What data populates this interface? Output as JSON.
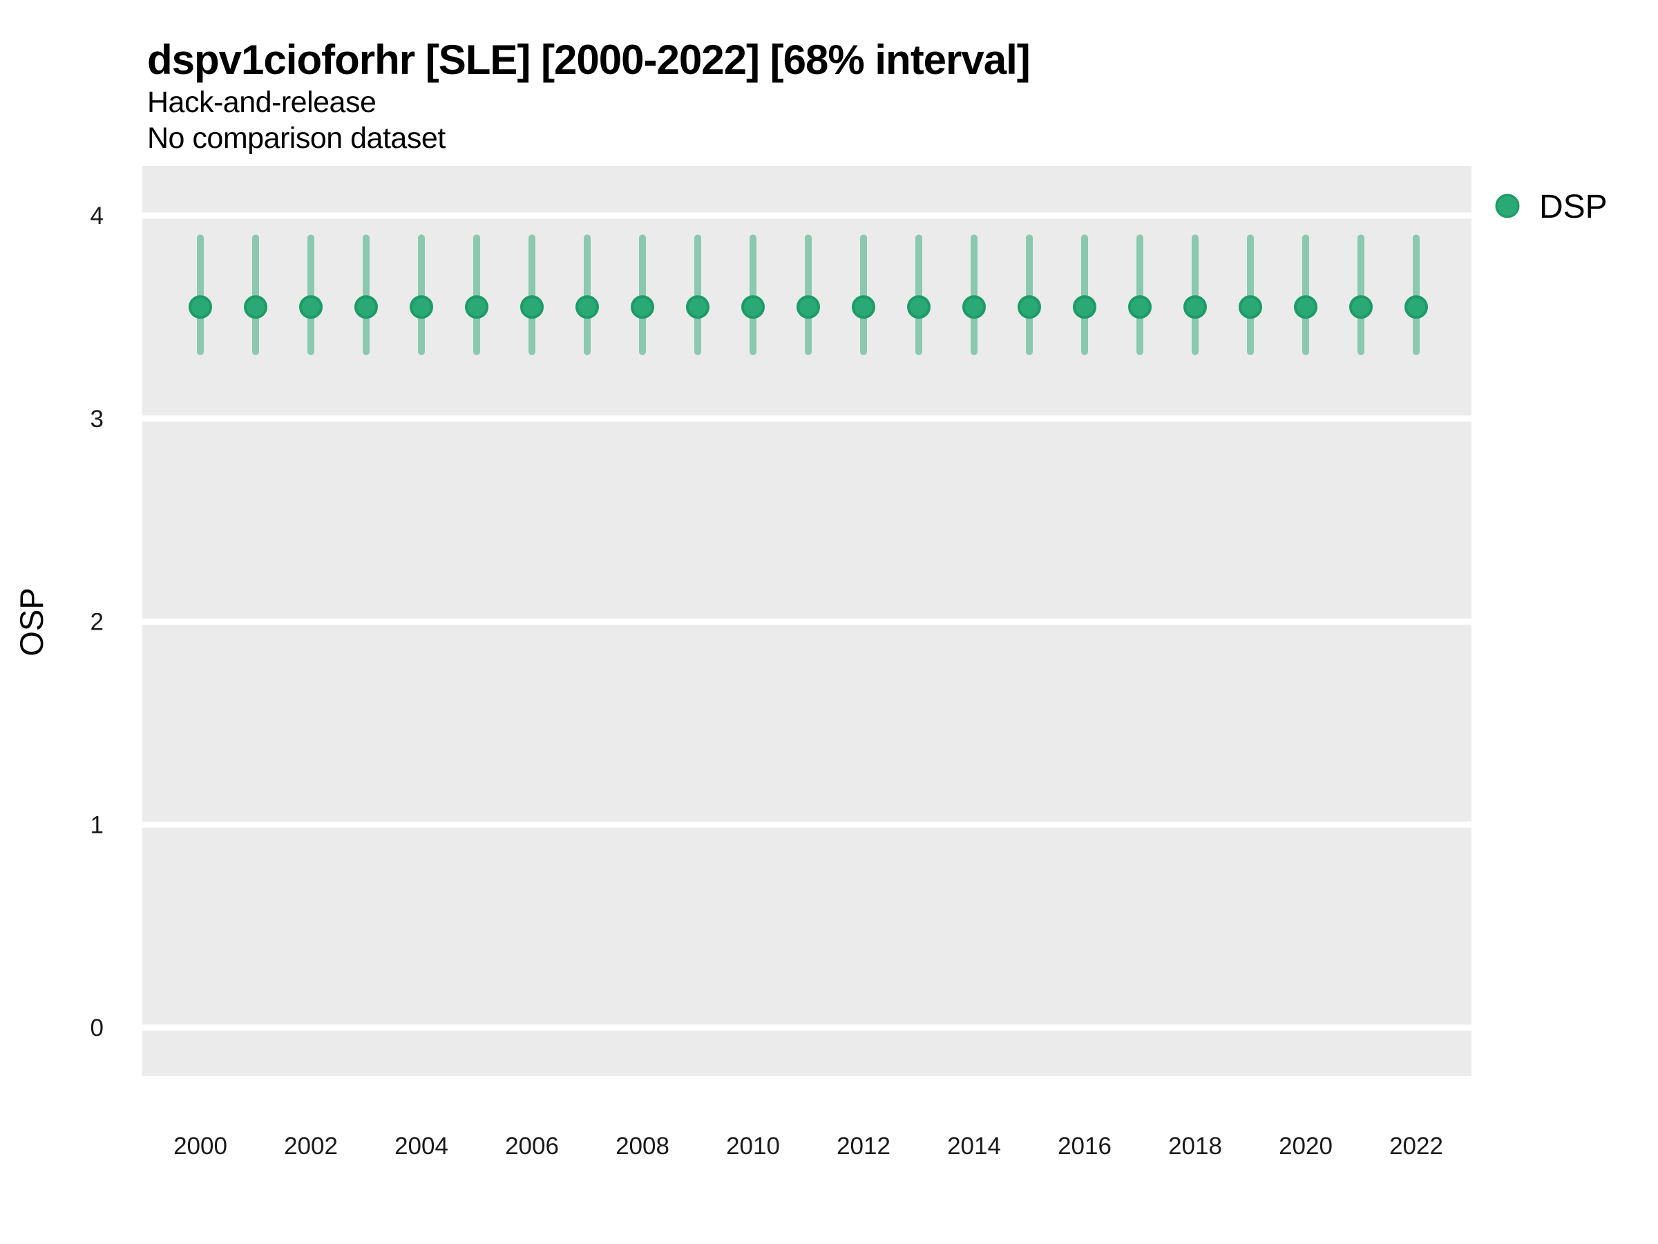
{
  "title": "dspv1cioforhr [SLE] [2000-2022] [68% interval]",
  "subtitle1": "Hack-and-release",
  "subtitle2": "No comparison dataset",
  "axes": {
    "y_label": "OSP",
    "y_ticks": [
      "0",
      "1",
      "2",
      "3",
      "4"
    ],
    "x_ticks": [
      "2000",
      "2002",
      "2004",
      "2006",
      "2008",
      "2010",
      "2012",
      "2014",
      "2016",
      "2018",
      "2020",
      "2022"
    ]
  },
  "legend": {
    "label": "DSP",
    "marker": "circle-icon"
  },
  "colors": {
    "figure_background": "#ffffff",
    "panel_background": "#ebebeb",
    "gridline": "#ffffff",
    "point_fill": "#2aa876",
    "point_stroke": "#1d9b67",
    "interval_bar": "rgba(42,168,118,0.5)",
    "text": "#000000",
    "tick_text": "#1a1a1a"
  },
  "chart_data": {
    "type": "pointrange",
    "title": "dspv1cioforhr [SLE] [2000-2022] [68% interval]",
    "subtitle": [
      "Hack-and-release",
      "No comparison dataset"
    ],
    "xlabel": "",
    "ylabel": "OSP",
    "interval": "68%",
    "legend_position": "top-right",
    "grid": "horizontal-major-only",
    "ylim": [
      -0.25,
      4.25
    ],
    "yticks": [
      0,
      1,
      2,
      3,
      4
    ],
    "xticks": [
      2000,
      2002,
      2004,
      2006,
      2008,
      2010,
      2012,
      2014,
      2016,
      2018,
      2020,
      2022
    ],
    "x": [
      2000,
      2001,
      2002,
      2003,
      2004,
      2005,
      2006,
      2007,
      2008,
      2009,
      2010,
      2011,
      2012,
      2013,
      2014,
      2015,
      2016,
      2017,
      2018,
      2019,
      2020,
      2021,
      2022
    ],
    "series": [
      {
        "name": "DSP",
        "mid": [
          3.55,
          3.55,
          3.55,
          3.55,
          3.55,
          3.55,
          3.55,
          3.55,
          3.55,
          3.55,
          3.55,
          3.55,
          3.55,
          3.55,
          3.55,
          3.55,
          3.55,
          3.55,
          3.55,
          3.55,
          3.55,
          3.55,
          3.55
        ],
        "lower": [
          3.33,
          3.33,
          3.33,
          3.33,
          3.33,
          3.33,
          3.33,
          3.33,
          3.33,
          3.33,
          3.33,
          3.33,
          3.33,
          3.33,
          3.33,
          3.33,
          3.33,
          3.33,
          3.33,
          3.33,
          3.33,
          3.33,
          3.33
        ],
        "upper": [
          3.89,
          3.89,
          3.89,
          3.89,
          3.89,
          3.89,
          3.89,
          3.89,
          3.89,
          3.89,
          3.89,
          3.89,
          3.89,
          3.89,
          3.89,
          3.89,
          3.89,
          3.89,
          3.89,
          3.89,
          3.89,
          3.89,
          3.89
        ]
      }
    ]
  }
}
